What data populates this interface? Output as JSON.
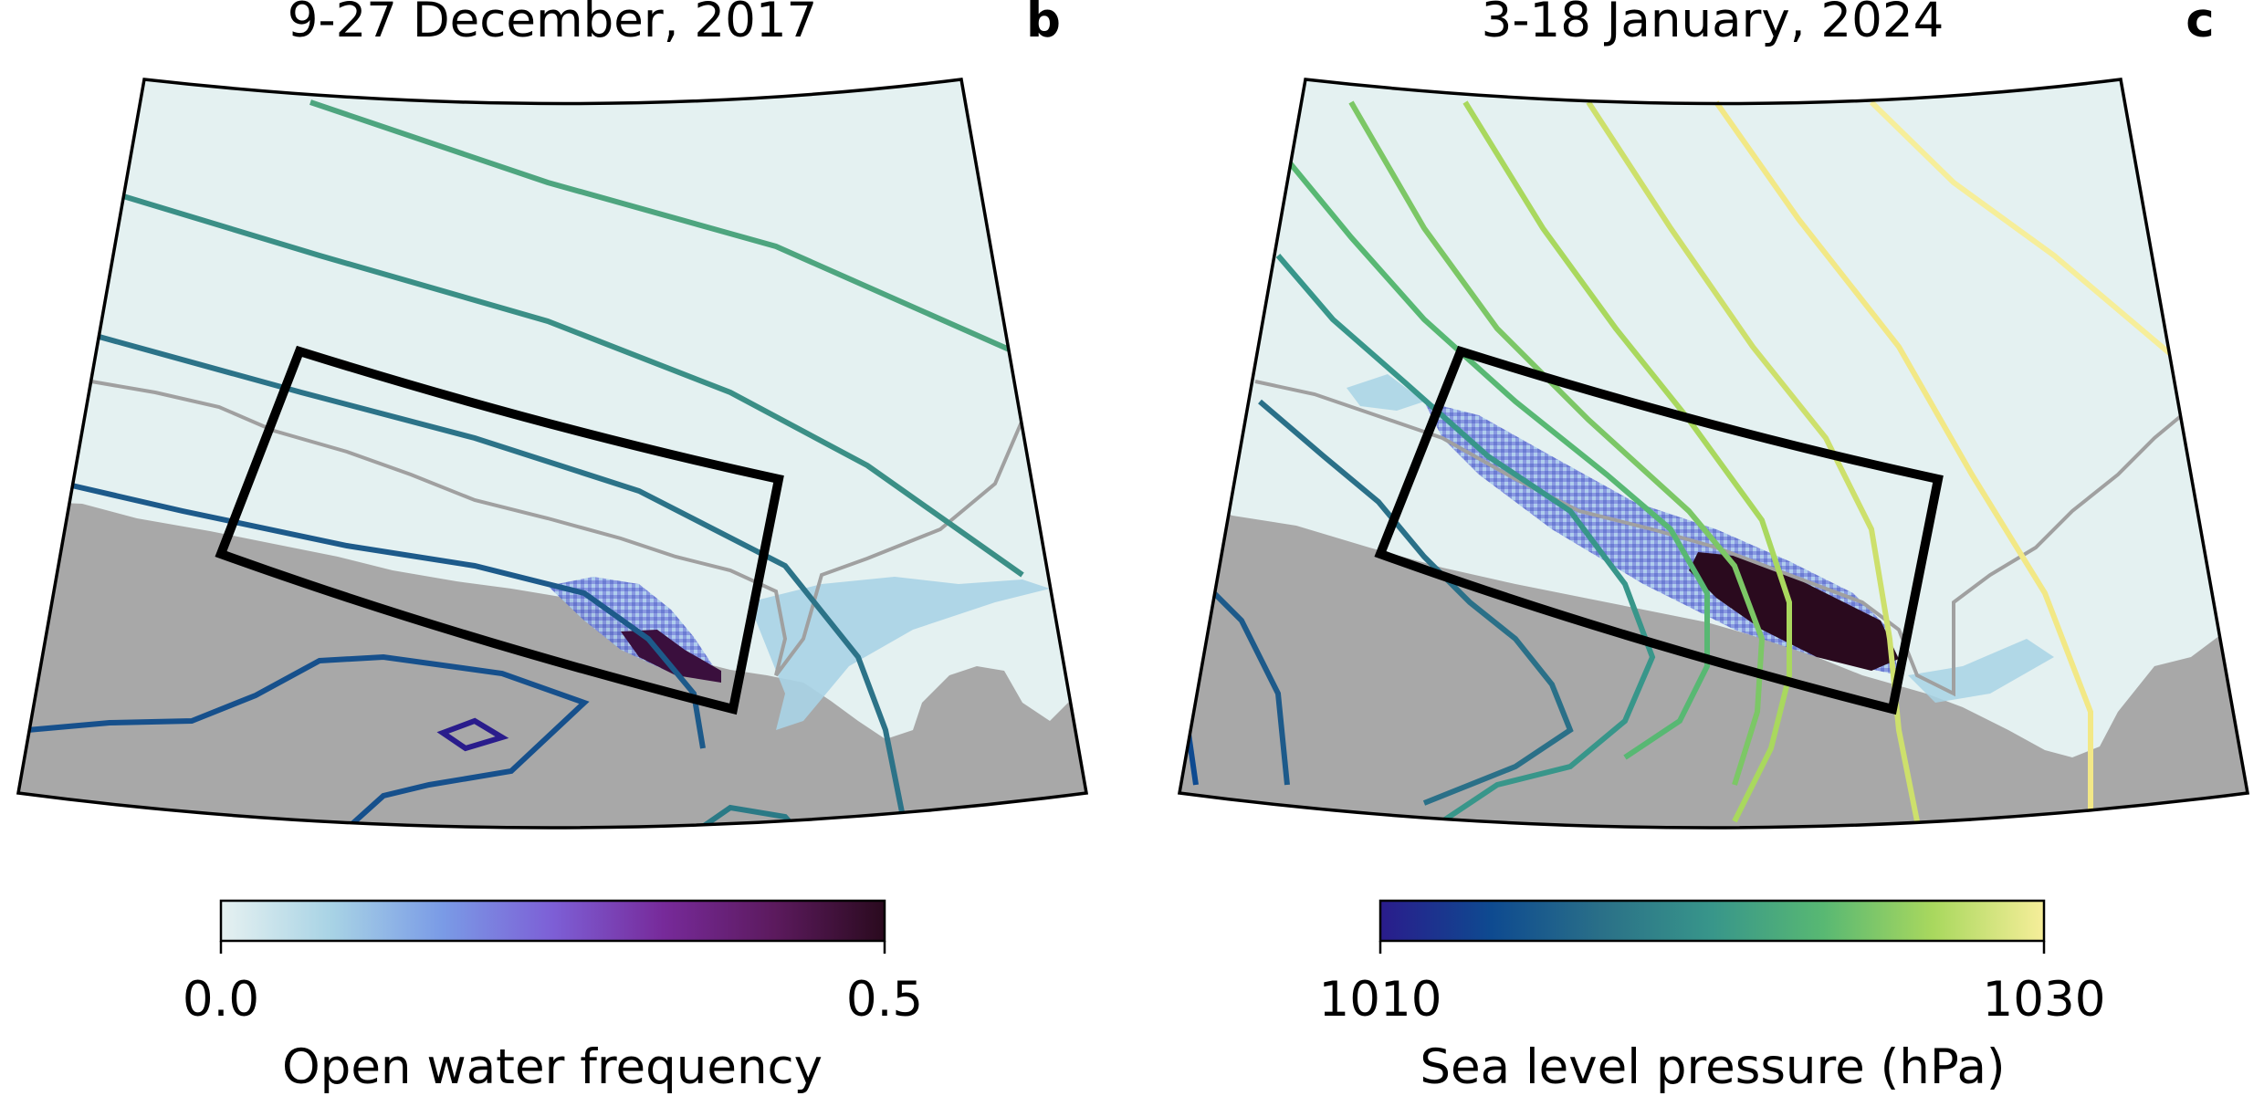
{
  "panels": [
    {
      "id": "b",
      "title": "9-27 December, 2017",
      "tag": "b"
    },
    {
      "id": "c",
      "title": "3-18 January, 2024",
      "tag": "c"
    }
  ],
  "colorbars": [
    {
      "name": "open-water",
      "label": "Open water frequency",
      "min_label": "0.0",
      "max_label": "0.5",
      "min": 0.0,
      "max": 0.5,
      "colormap": "dense",
      "stops": [
        "#e6f1f1",
        "#a8d3e5",
        "#7a9be6",
        "#7d5fd6",
        "#772a9a",
        "#5c1a5e",
        "#2a0a1e"
      ]
    },
    {
      "name": "slp",
      "label": "Sea level pressure (hPa)",
      "min_label": "1010",
      "max_label": "1030",
      "min": 1010,
      "max": 1030,
      "colormap": "haline",
      "stops": [
        "#2a1c8c",
        "#0e4a90",
        "#2a7088",
        "#38968a",
        "#58b873",
        "#a9d85e",
        "#f6ee9a"
      ]
    }
  ],
  "colors": {
    "ocean": "#e4f1f1",
    "land": "#a8a8a8",
    "ice_shelf_line": "#a0a0a0",
    "box": "#000000"
  }
}
